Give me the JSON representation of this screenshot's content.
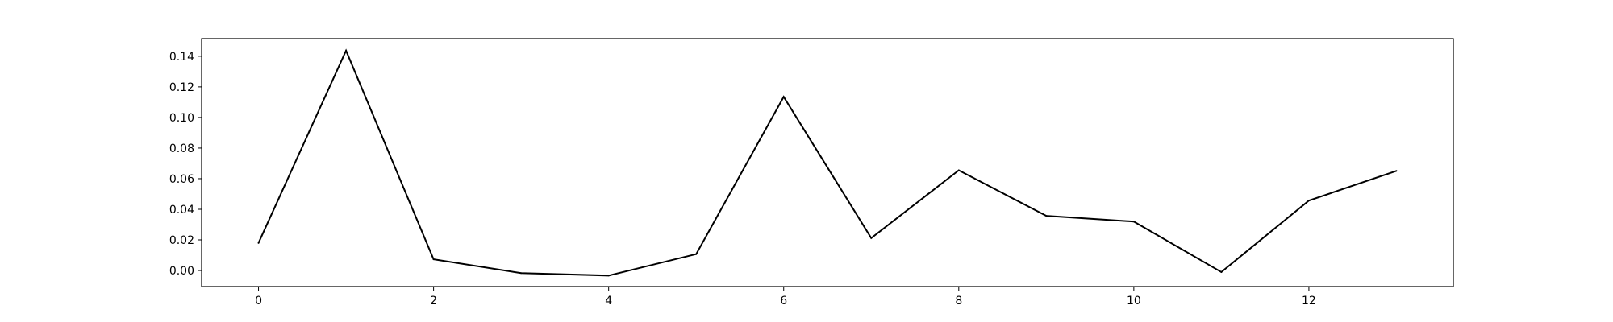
{
  "chart_data": {
    "type": "line",
    "title": "",
    "xlabel": "",
    "ylabel": "",
    "xlim": [
      -0.65,
      13.65
    ],
    "ylim": [
      -0.0105,
      0.1515
    ],
    "x_ticks": [
      0,
      2,
      4,
      6,
      8,
      10,
      12
    ],
    "x_tick_labels": [
      "0",
      "2",
      "4",
      "6",
      "8",
      "10",
      "12"
    ],
    "y_ticks": [
      0.0,
      0.02,
      0.04,
      0.06,
      0.08,
      0.1,
      0.12,
      0.14
    ],
    "y_tick_labels": [
      "0.00",
      "0.02",
      "0.04",
      "0.06",
      "0.08",
      "0.10",
      "0.12",
      "0.14"
    ],
    "grid": false,
    "series": [
      {
        "color": "#000000",
        "x": [
          0,
          1,
          2,
          3,
          4,
          5,
          6,
          7,
          8,
          9,
          10,
          11,
          12,
          13
        ],
        "values": [
          0.018,
          0.1437,
          0.0073,
          -0.0017,
          -0.0033,
          0.0107,
          0.1135,
          0.0212,
          0.0655,
          0.0357,
          0.032,
          -0.001,
          0.0457,
          0.0651
        ]
      }
    ]
  }
}
